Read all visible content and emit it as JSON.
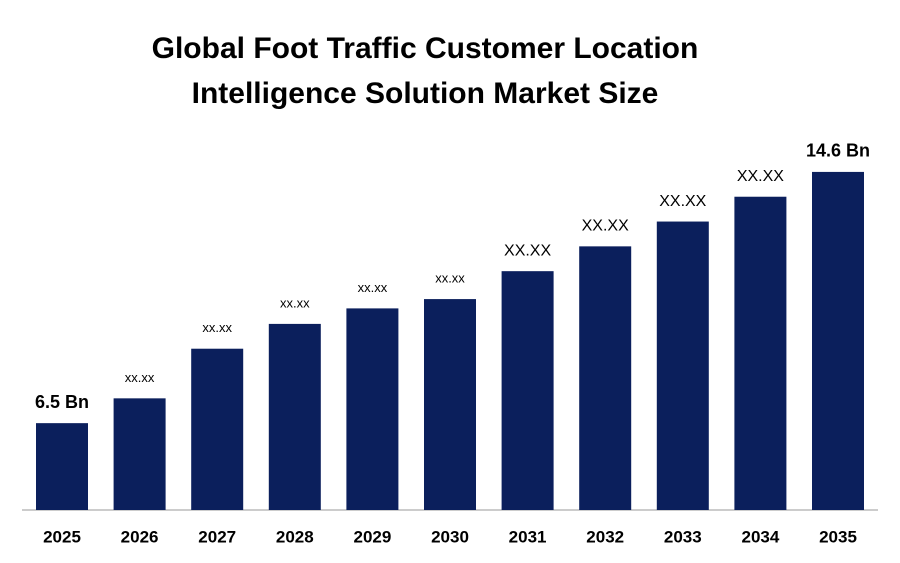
{
  "chart_data": {
    "type": "bar",
    "title": [
      "Global Foot Traffic Customer Location",
      "Intelligence Solution Market Size"
    ],
    "categories": [
      "2025",
      "2026",
      "2027",
      "2028",
      "2029",
      "2030",
      "2031",
      "2032",
      "2033",
      "2034",
      "2035"
    ],
    "values": [
      6.5,
      7.3,
      8.9,
      9.7,
      10.2,
      10.5,
      11.4,
      12.2,
      13.0,
      13.8,
      14.6
    ],
    "value_labels": [
      "6.5 Bn",
      "xx.xx",
      "xx.xx",
      "xx.xx",
      "xx.xx",
      "xx.xx",
      "XX.XX",
      "XX.XX",
      "XX.XX",
      "XX.XX",
      "14.6 Bn"
    ],
    "color": "#0b1f5c",
    "ylim": [
      3.7,
      15.5
    ]
  }
}
